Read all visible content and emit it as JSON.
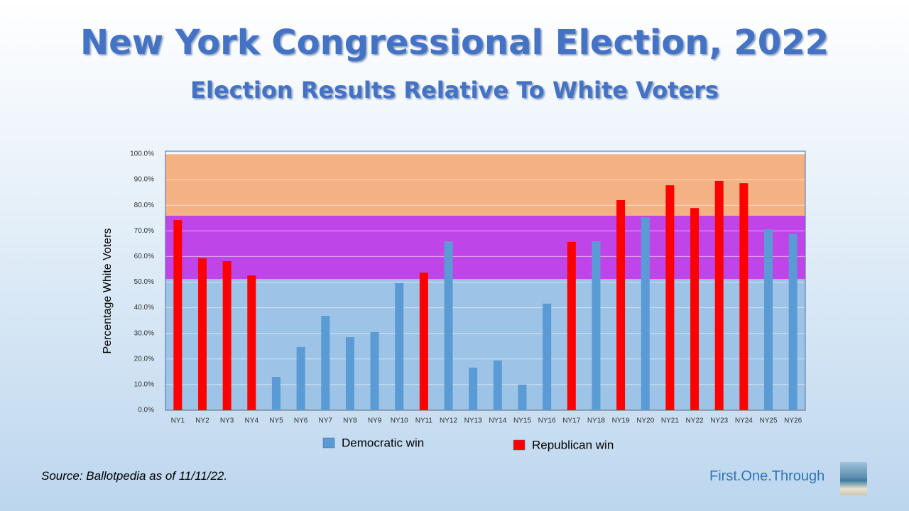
{
  "chart_data": {
    "type": "bar",
    "title": "New York Congressional Election, 2022",
    "subtitle": "Election Results Relative To White Voters",
    "y_label": "Percentage White Voters",
    "source": "Source: Ballotpedia as of 11/11/22.",
    "brand": "First.One.Through",
    "categories": [
      "NY1",
      "NY2",
      "NY3",
      "NY4",
      "NY5",
      "NY6",
      "NY7",
      "NY8",
      "NY9",
      "NY10",
      "NY11",
      "NY12",
      "NY13",
      "NY14",
      "NY15",
      "NY16",
      "NY17",
      "NY18",
      "NY19",
      "NY20",
      "NY21",
      "NY22",
      "NY23",
      "NY24",
      "NY25",
      "NY26"
    ],
    "series": [
      {
        "name": "Democratic win",
        "color": "#5b9bd5",
        "values": [
          null,
          null,
          null,
          null,
          13.0,
          24.7,
          36.8,
          28.5,
          30.5,
          49.6,
          null,
          65.9,
          16.6,
          19.4,
          10.0,
          41.6,
          null,
          65.9,
          null,
          75.3,
          null,
          null,
          null,
          null,
          70.6,
          68.7
        ]
      },
      {
        "name": "Republican win",
        "color": "#ff0000",
        "values": [
          74.2,
          59.3,
          58.2,
          52.6,
          null,
          null,
          null,
          null,
          null,
          null,
          53.7,
          null,
          null,
          null,
          null,
          null,
          65.7,
          null,
          82.0,
          null,
          87.8,
          78.9,
          89.5,
          88.6,
          null,
          null
        ]
      }
    ],
    "bands": [
      {
        "from": 0,
        "to": 51.2,
        "color": "#9dc3e6"
      },
      {
        "from": 51.2,
        "to": 75.9,
        "color": "#c045e8"
      },
      {
        "from": 75.9,
        "to": 100,
        "color": "#f4b183"
      }
    ],
    "ylim": [
      0,
      100
    ],
    "yticks": [
      {
        "value": 0,
        "label": "0.0%"
      },
      {
        "value": 10,
        "label": "10.0%"
      },
      {
        "value": 20,
        "label": "20.0%"
      },
      {
        "value": 30,
        "label": "30.0%"
      },
      {
        "value": 40,
        "label": "40.0%"
      },
      {
        "value": 50,
        "label": "50.0%"
      },
      {
        "value": 60,
        "label": "60.0%"
      },
      {
        "value": 70,
        "label": "70.0%"
      },
      {
        "value": 80,
        "label": "80.0%"
      },
      {
        "value": 90,
        "label": "90.0%"
      },
      {
        "value": 100,
        "label": "100.0%"
      }
    ],
    "grid": true
  }
}
